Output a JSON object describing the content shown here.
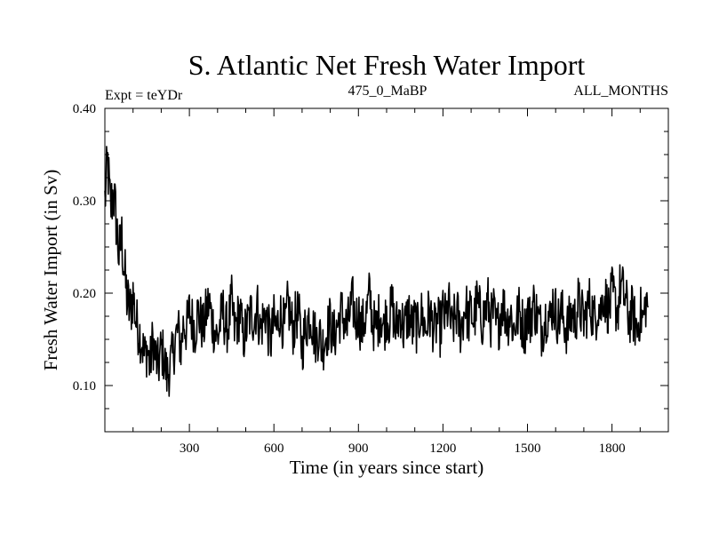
{
  "chart_data": {
    "type": "line",
    "title": "S. Atlantic Net Fresh Water Import",
    "subtitle_left": "Expt = teYDr",
    "subtitle_center": "475_0_MaBP",
    "subtitle_right": "ALL_MONTHS",
    "xlabel": "Time (in years since start)",
    "ylabel": "Fresh Water Import (in Sv)",
    "xlim": [
      0,
      2000
    ],
    "ylim": [
      0.05,
      0.4
    ],
    "x_ticks": [
      300,
      600,
      900,
      1200,
      1500,
      1800
    ],
    "x_tick_labels": [
      "300",
      "600",
      "900",
      "1200",
      "1500",
      "1800"
    ],
    "y_ticks": [
      0.1,
      0.2,
      0.3,
      0.4
    ],
    "y_tick_labels": [
      "0.10",
      "0.20",
      "0.30",
      "0.40"
    ],
    "series": [
      {
        "name": "net fresh water import",
        "x_start": 0,
        "x_step": 10,
        "values": [
          0.3,
          0.34,
          0.29,
          0.31,
          0.28,
          0.24,
          0.26,
          0.22,
          0.19,
          0.18,
          0.2,
          0.17,
          0.16,
          0.15,
          0.13,
          0.14,
          0.12,
          0.15,
          0.13,
          0.12,
          0.14,
          0.13,
          0.11,
          0.12,
          0.13,
          0.15,
          0.16,
          0.14,
          0.17,
          0.16,
          0.18,
          0.17,
          0.16,
          0.18,
          0.17,
          0.16,
          0.18,
          0.19,
          0.17,
          0.16,
          0.15,
          0.17,
          0.18,
          0.16,
          0.17,
          0.19,
          0.16,
          0.17,
          0.18,
          0.15,
          0.16,
          0.17,
          0.18,
          0.17,
          0.19,
          0.16,
          0.17,
          0.18,
          0.16,
          0.15,
          0.17,
          0.16,
          0.18,
          0.17,
          0.16,
          0.19,
          0.17,
          0.16,
          0.18,
          0.17,
          0.14,
          0.16,
          0.17,
          0.18,
          0.16,
          0.15,
          0.16,
          0.14,
          0.15,
          0.16,
          0.17,
          0.15,
          0.16,
          0.17,
          0.18,
          0.17,
          0.16,
          0.18,
          0.19,
          0.17,
          0.18,
          0.16,
          0.17,
          0.18,
          0.2,
          0.17,
          0.16,
          0.17,
          0.18,
          0.16,
          0.18,
          0.17,
          0.19,
          0.16,
          0.17,
          0.18,
          0.16,
          0.17,
          0.18,
          0.16,
          0.17,
          0.16,
          0.18,
          0.17,
          0.16,
          0.18,
          0.17,
          0.16,
          0.17,
          0.16,
          0.18,
          0.17,
          0.19,
          0.16,
          0.17,
          0.18,
          0.16,
          0.17,
          0.19,
          0.17,
          0.18,
          0.17,
          0.19,
          0.18,
          0.17,
          0.18,
          0.19,
          0.17,
          0.18,
          0.16,
          0.17,
          0.19,
          0.18,
          0.17,
          0.18,
          0.16,
          0.17,
          0.18,
          0.17,
          0.16,
          0.18,
          0.17,
          0.19,
          0.18,
          0.17,
          0.16,
          0.17,
          0.18,
          0.17,
          0.19,
          0.18,
          0.17,
          0.18,
          0.17,
          0.16,
          0.17,
          0.18,
          0.17,
          0.19,
          0.18,
          0.17,
          0.18,
          0.19,
          0.18,
          0.17,
          0.19,
          0.18,
          0.2,
          0.19,
          0.18,
          0.2,
          0.19,
          0.18,
          0.21,
          0.2,
          0.19,
          0.17,
          0.18,
          0.17,
          0.16,
          0.18,
          0.17,
          0.19
        ]
      }
    ]
  }
}
